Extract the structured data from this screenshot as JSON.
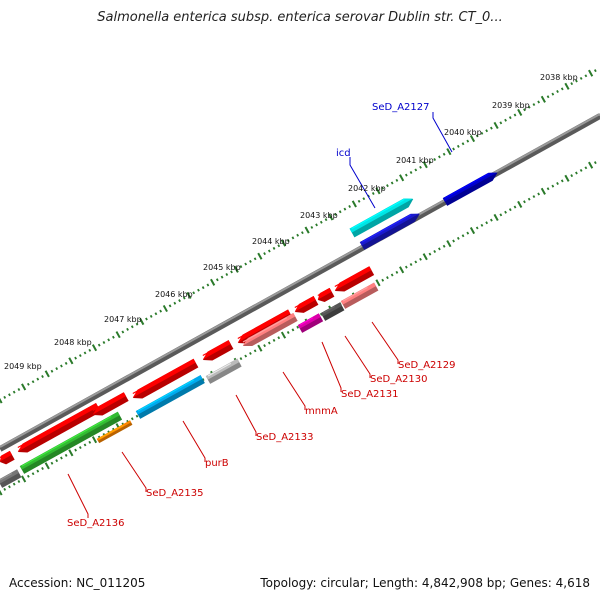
{
  "title": "Salmonella enterica subsp. enterica serovar Dublin str. CT_0...",
  "footer": {
    "accession": "Accession: NC_011205",
    "summary": "Topology: circular; Length: 4,842,908 bp; Genes: 4,618"
  },
  "colors": {
    "backbone": "#7a7a7a",
    "tick": "#2a7a2a",
    "label_forward": "#0000cc",
    "label_reverse": "#cc0000"
  },
  "ruler": [
    {
      "label": "2038 kbp"
    },
    {
      "label": "2039 kbp"
    },
    {
      "label": "2040 kbp"
    },
    {
      "label": "2041 kbp"
    },
    {
      "label": "2042 kbp"
    },
    {
      "label": "2043 kbp"
    },
    {
      "label": "2044 kbp"
    },
    {
      "label": "2045 kbp"
    },
    {
      "label": "2046 kbp"
    },
    {
      "label": "2047 kbp"
    },
    {
      "label": "2048 kbp"
    },
    {
      "label": "2049 kbp"
    }
  ],
  "genes": [
    {
      "id": "icd",
      "label": "icd",
      "strand": "forward",
      "color": "#00e5e5"
    },
    {
      "id": "SeD_A2127",
      "label": "SeD_A2127",
      "strand": "forward",
      "color": "#0000cc"
    },
    {
      "id": "SeD_A2129",
      "label": "SeD_A2129",
      "strand": "reverse",
      "color": "#ff8080"
    },
    {
      "id": "SeD_A2130",
      "label": "SeD_A2130",
      "strand": "reverse",
      "color": "#555555"
    },
    {
      "id": "SeD_A2131",
      "label": "SeD_A2131",
      "strand": "reverse",
      "color": "#dd00aa"
    },
    {
      "id": "mnmA",
      "label": "mnmA",
      "strand": "reverse",
      "color": "#ff8080"
    },
    {
      "id": "SeD_A2133",
      "label": "SeD_A2133",
      "strand": "reverse",
      "color": "#bbbbbb"
    },
    {
      "id": "purB",
      "label": "purB",
      "strand": "reverse",
      "color": "#00aaee"
    },
    {
      "id": "SeD_A2135",
      "label": "SeD_A2135",
      "strand": "reverse",
      "color": "#ff8800"
    },
    {
      "id": "SeD_A2136",
      "label": "SeD_A2136",
      "strand": "reverse",
      "color": "#33bb33"
    }
  ]
}
